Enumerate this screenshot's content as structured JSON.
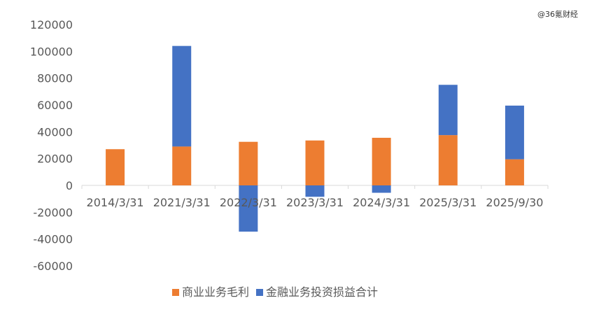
{
  "watermark": "@36氪财经",
  "chart_data": {
    "type": "bar",
    "stacked": true,
    "categories": [
      "2014/3/31",
      "2021/3/31",
      "2022/3/31",
      "2023/3/31",
      "2024/3/31",
      "2025/3/31",
      "2025/9/30"
    ],
    "series": [
      {
        "name": "商业业务毛利",
        "color": "#ed7d31",
        "values": [
          27000,
          29000,
          32500,
          33500,
          35500,
          37500,
          19500
        ]
      },
      {
        "name": "金融业务投资损益合计",
        "color": "#4472c4",
        "values": [
          0,
          75000,
          -34500,
          -8500,
          -5500,
          37500,
          40000
        ]
      }
    ],
    "ylim": [
      -60000,
      120000
    ],
    "yticks": [
      120000,
      100000,
      80000,
      60000,
      40000,
      20000,
      0,
      -20000,
      -40000,
      -60000
    ],
    "grid": false,
    "legend": "bottom"
  }
}
